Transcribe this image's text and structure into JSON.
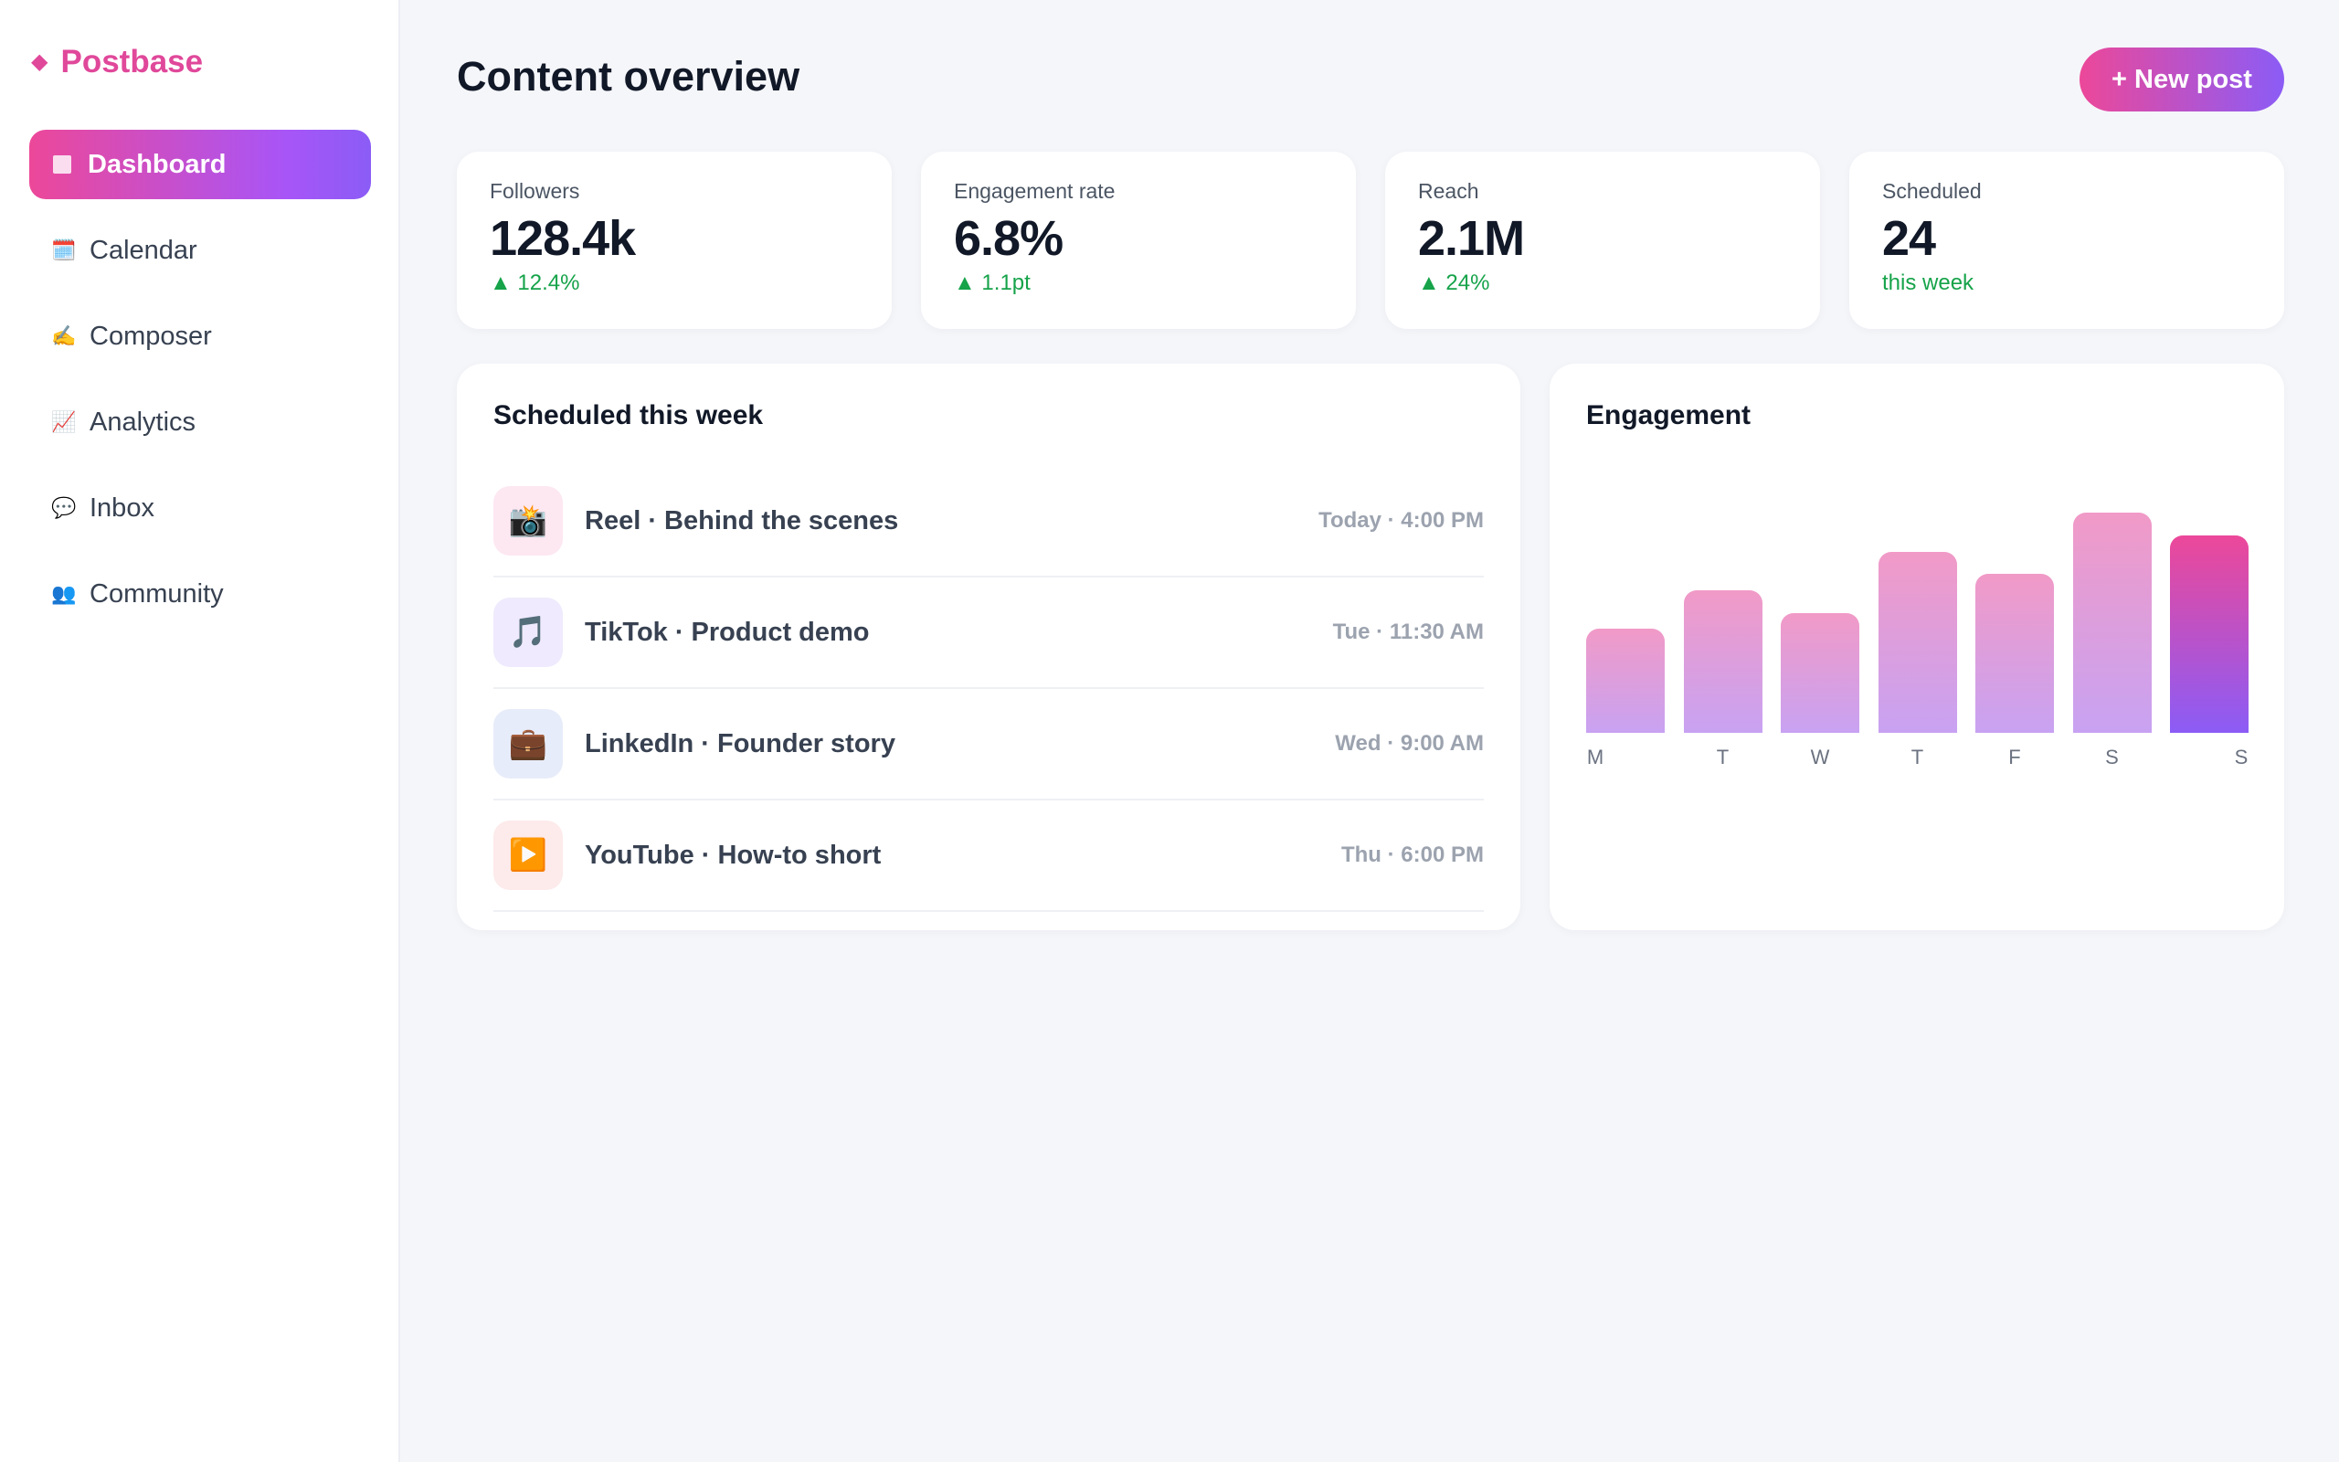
{
  "brand": {
    "icon": "diamond-icon",
    "glyph": "◆",
    "name": "Postbase"
  },
  "nav": [
    {
      "label": "Dashboard",
      "icon": "dashboard-icon",
      "glyph": "",
      "active": true
    },
    {
      "label": "Calendar",
      "icon": "calendar-icon",
      "glyph": "🗓️"
    },
    {
      "label": "Composer",
      "icon": "writing-hand-icon",
      "glyph": "✍️"
    },
    {
      "label": "Analytics",
      "icon": "chart-icon",
      "glyph": "📈"
    },
    {
      "label": "Inbox",
      "icon": "speech-bubble-icon",
      "glyph": "💬"
    },
    {
      "label": "Community",
      "icon": "people-icon",
      "glyph": "👥"
    }
  ],
  "header": {
    "title": "Content overview",
    "new_post_label": "+ New post"
  },
  "stats": [
    {
      "label": "Followers",
      "value": "128.4k",
      "delta": "▲ 12.4%"
    },
    {
      "label": "Engagement rate",
      "value": "6.8%",
      "delta": "▲ 1.1pt"
    },
    {
      "label": "Reach",
      "value": "2.1M",
      "delta": "▲ 24%"
    },
    {
      "label": "Scheduled",
      "value": "24",
      "delta": "this week"
    }
  ],
  "schedule": {
    "title": "Scheduled this week",
    "items": [
      {
        "icon": "camera-icon",
        "glyph": "📸",
        "bg": "#fde7f1",
        "name": "Reel · Behind the scenes",
        "time": "Today · 4:00 PM"
      },
      {
        "icon": "music-note-icon",
        "glyph": "🎵",
        "bg": "#efeafd",
        "name": "TikTok · Product demo",
        "time": "Tue · 11:30 AM"
      },
      {
        "icon": "briefcase-icon",
        "glyph": "💼",
        "bg": "#e7ecfa",
        "name": "LinkedIn · Founder story",
        "time": "Wed · 9:00 AM"
      },
      {
        "icon": "play-button-icon",
        "glyph": "▶️",
        "bg": "#fdeaea",
        "name": "YouTube · How-to short",
        "time": "Thu · 6:00 PM"
      }
    ]
  },
  "engagement": {
    "title": "Engagement"
  },
  "chart_data": {
    "type": "bar",
    "title": "Engagement",
    "categories": [
      "M",
      "T",
      "W",
      "T",
      "F",
      "S",
      "S"
    ],
    "values": [
      46,
      63,
      53,
      80,
      70,
      97,
      87
    ],
    "ylim": [
      0,
      100
    ],
    "highlight_index": 6,
    "colors": {
      "bar_top": "#f19ac7",
      "bar_bottom": "#c8a2f2",
      "highlight_top": "#ec4899",
      "highlight_bottom": "#8b5cf6"
    },
    "grid": false,
    "legend": "none"
  }
}
